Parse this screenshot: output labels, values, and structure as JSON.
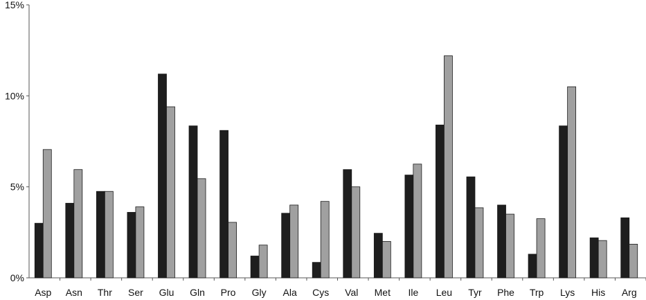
{
  "chart_data": {
    "type": "bar",
    "title": "",
    "xlabel": "",
    "ylabel": "",
    "ylim": [
      0,
      15
    ],
    "yticks": [
      {
        "value": 0,
        "label": "0%"
      },
      {
        "value": 5,
        "label": "5%"
      },
      {
        "value": 10,
        "label": "10%"
      },
      {
        "value": 15,
        "label": "15%"
      }
    ],
    "grid": false,
    "legend": "none",
    "categories": [
      "Asp",
      "Asn",
      "Thr",
      "Ser",
      "Glu",
      "Gln",
      "Pro",
      "Gly",
      "Ala",
      "Cys",
      "Val",
      "Met",
      "Ile",
      "Leu",
      "Tyr",
      "Phe",
      "Trp",
      "Lys",
      "His",
      "Arg"
    ],
    "series": [
      {
        "color": "#1e1e1e",
        "values": [
          3.0,
          4.1,
          4.75,
          3.6,
          11.2,
          8.35,
          8.1,
          1.2,
          3.55,
          0.85,
          5.95,
          2.45,
          5.65,
          8.4,
          5.55,
          4.0,
          1.3,
          8.35,
          2.2,
          3.3
        ]
      },
      {
        "color": "#a0a0a0",
        "values": [
          7.05,
          5.95,
          4.75,
          3.9,
          9.4,
          5.45,
          3.05,
          1.8,
          4.0,
          4.2,
          5.0,
          2.0,
          6.25,
          12.2,
          3.85,
          3.5,
          3.25,
          10.5,
          2.05,
          1.85
        ]
      }
    ]
  }
}
